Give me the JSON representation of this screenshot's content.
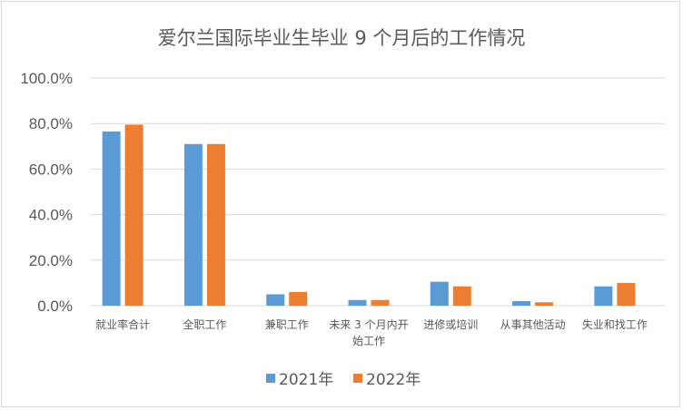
{
  "chart_data": {
    "type": "bar",
    "title": "爱尔兰国际毕业生毕业 9 个月后的工作情况",
    "categories": [
      [
        "就业率合计"
      ],
      [
        "全职工作"
      ],
      [
        "兼职工作"
      ],
      [
        "未来 3 个月内开",
        "始工作"
      ],
      [
        "进修或培训"
      ],
      [
        "从事其他活动"
      ],
      [
        "失业和找工作"
      ]
    ],
    "series": [
      {
        "name": "2021年",
        "color": "#5b9bd5",
        "values": [
          76.5,
          71.0,
          5.0,
          2.5,
          10.5,
          2.0,
          8.5
        ]
      },
      {
        "name": "2022年",
        "color": "#ed7d31",
        "values": [
          79.5,
          71.0,
          6.0,
          2.5,
          8.5,
          1.5,
          10.0
        ]
      }
    ],
    "ylim": [
      0,
      100
    ],
    "yticks": [
      "0.0%",
      "20.0%",
      "40.0%",
      "60.0%",
      "80.0%",
      "100.0%"
    ],
    "grid": true,
    "legend_position": "bottom"
  }
}
